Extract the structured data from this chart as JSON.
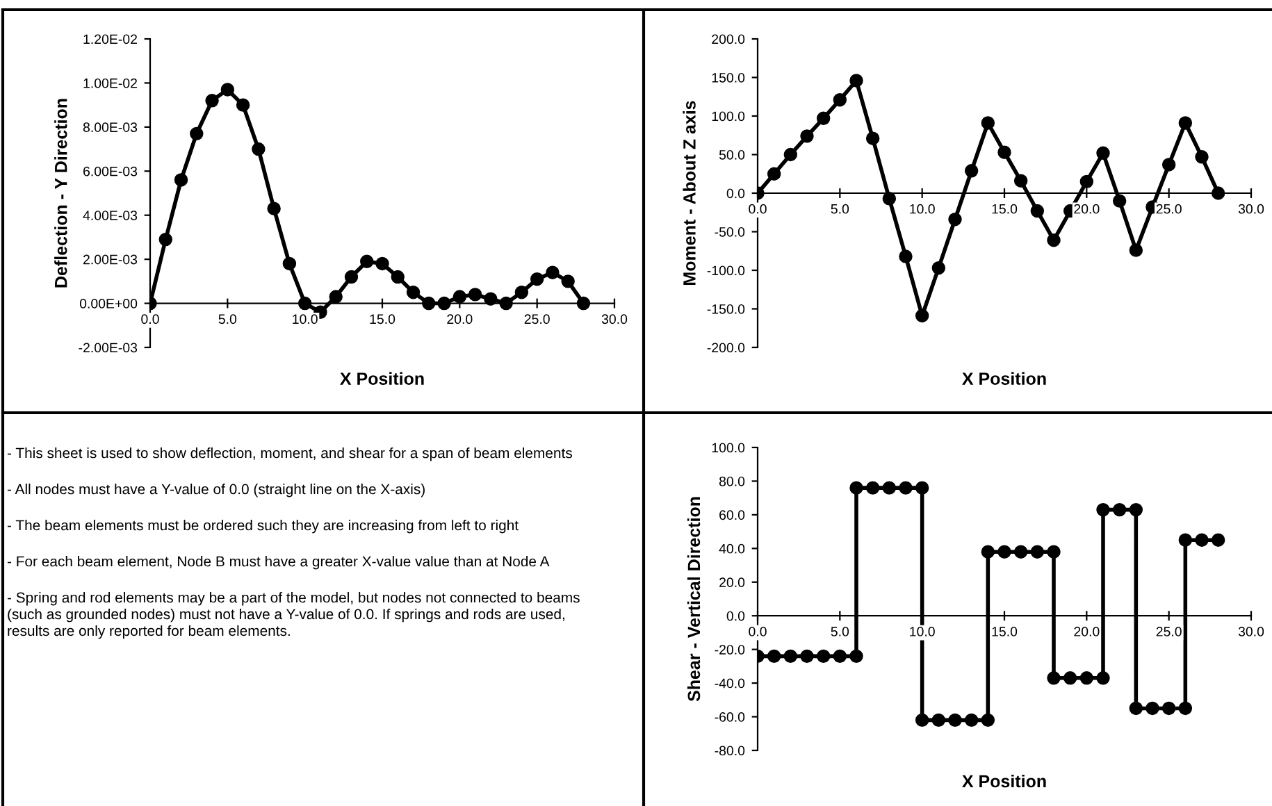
{
  "chart_data": [
    {
      "type": "line",
      "xlabel": "X Position",
      "ylabel": "Deflection - Y Direction",
      "marker": "circle",
      "line_style": "solid",
      "grid": false,
      "x": [
        0,
        1,
        2,
        3,
        4,
        5,
        6,
        7,
        8,
        9,
        10,
        11,
        12,
        13,
        14,
        15,
        16,
        17,
        18,
        19,
        20,
        21,
        22,
        23,
        24,
        25,
        26,
        27,
        28
      ],
      "series": [
        {
          "color": "#000000",
          "values": [
            0,
            0.0029,
            0.0056,
            0.0077,
            0.0092,
            0.0097,
            0.009,
            0.007,
            0.0043,
            0.0018,
            0,
            -0.0004,
            0.0003,
            0.0012,
            0.0019,
            0.0018,
            0.0012,
            0.0005,
            0,
            0,
            0.0003,
            0.0004,
            0.0002,
            0,
            0.0005,
            0.0011,
            0.0014,
            0.001,
            0
          ]
        }
      ],
      "xlim": [
        0,
        30
      ],
      "xticks": [
        {
          "value": 0,
          "label": "0.0"
        },
        {
          "value": 5,
          "label": "5.0"
        },
        {
          "value": 10,
          "label": "10.0"
        },
        {
          "value": 15,
          "label": "15.0"
        },
        {
          "value": 20,
          "label": "20.0"
        },
        {
          "value": 25,
          "label": "25.0"
        },
        {
          "value": 30,
          "label": "30.0"
        }
      ],
      "ylim": [
        -0.002,
        0.012
      ],
      "yticks": [
        {
          "value": -0.002,
          "label": "-2.00E-03"
        },
        {
          "value": 0,
          "label": "0.00E+00"
        },
        {
          "value": 0.002,
          "label": "2.00E-03"
        },
        {
          "value": 0.004,
          "label": "4.00E-03"
        },
        {
          "value": 0.006,
          "label": "6.00E-03"
        },
        {
          "value": 0.008,
          "label": "8.00E-03"
        },
        {
          "value": 0.01,
          "label": "1.00E-02"
        },
        {
          "value": 0.012,
          "label": "1.20E-02"
        }
      ]
    },
    {
      "type": "line",
      "xlabel": "X Position",
      "ylabel": "Moment - About Z axis",
      "marker": "circle",
      "line_style": "solid",
      "grid": false,
      "x": [
        0,
        1,
        2,
        3,
        4,
        5,
        6,
        7,
        8,
        9,
        10,
        11,
        12,
        13,
        14,
        15,
        16,
        17,
        18,
        19,
        20,
        21,
        22,
        23,
        24,
        25,
        26,
        27,
        28
      ],
      "series": [
        {
          "color": "#000000",
          "values": [
            0,
            25,
            50,
            74,
            97,
            121,
            146,
            71,
            -7,
            -82,
            -159,
            -97,
            -34,
            29,
            91,
            53,
            16,
            -23,
            -61,
            -23,
            15,
            52,
            -10,
            -74,
            -18,
            37,
            91,
            47,
            0
          ]
        }
      ],
      "xlim": [
        0,
        30
      ],
      "xticks": [
        {
          "value": 0,
          "label": "0.0"
        },
        {
          "value": 5,
          "label": "5.0"
        },
        {
          "value": 10,
          "label": "10.0"
        },
        {
          "value": 15,
          "label": "15.0"
        },
        {
          "value": 20,
          "label": "20.0"
        },
        {
          "value": 25,
          "label": "25.0"
        },
        {
          "value": 30,
          "label": "30.0"
        }
      ],
      "ylim": [
        -200,
        200
      ],
      "yticks": [
        {
          "value": -200,
          "label": "-200.0"
        },
        {
          "value": -150,
          "label": "-150.0"
        },
        {
          "value": -100,
          "label": "-100.0"
        },
        {
          "value": -50,
          "label": "-50.0"
        },
        {
          "value": 0,
          "label": "0.0"
        },
        {
          "value": 50,
          "label": "50.0"
        },
        {
          "value": 100,
          "label": "100.0"
        },
        {
          "value": 150,
          "label": "150.0"
        },
        {
          "value": 200,
          "label": "200.0"
        }
      ]
    },
    {
      "type": "other",
      "annotations": [
        "- This sheet is used to show deflection, moment, and shear for a span of beam elements",
        "- All nodes must have a Y-value of 0.0 (straight line on the X-axis)",
        "- The beam elements must be ordered such they are increasing from left to right",
        "- For each beam element, Node B must have a greater X-value value than at Node A",
        "- Spring and rod elements may be a part of the model, but nodes not connected to beams\n(such as grounded nodes) must not have a Y-value of 0.0. If springs and rods are used,\nresults are only reported for beam elements."
      ]
    },
    {
      "type": "line",
      "xlabel": "X Position",
      "ylabel": "Shear - Vertical Direction",
      "marker": "circle",
      "line_style": "solid",
      "grid": false,
      "x": [
        0,
        1,
        2,
        3,
        4,
        5,
        6,
        6,
        7,
        8,
        9,
        10,
        10,
        11,
        12,
        13,
        14,
        14,
        15,
        16,
        17,
        18,
        18,
        19,
        20,
        21,
        21,
        22,
        23,
        23,
        24,
        25,
        26,
        26,
        27,
        28
      ],
      "series": [
        {
          "color": "#000000",
          "values": [
            -24,
            -24,
            -24,
            -24,
            -24,
            -24,
            -24,
            76,
            76,
            76,
            76,
            76,
            -62,
            -62,
            -62,
            -62,
            -62,
            38,
            38,
            38,
            38,
            38,
            -37,
            -37,
            -37,
            -37,
            63,
            63,
            63,
            -55,
            -55,
            -55,
            -55,
            45,
            45,
            45
          ]
        }
      ],
      "xlim": [
        0,
        30
      ],
      "xticks": [
        {
          "value": 0,
          "label": "0.0"
        },
        {
          "value": 5,
          "label": "5.0"
        },
        {
          "value": 10,
          "label": "10.0"
        },
        {
          "value": 15,
          "label": "15.0"
        },
        {
          "value": 20,
          "label": "20.0"
        },
        {
          "value": 25,
          "label": "25.0"
        },
        {
          "value": 30,
          "label": "30.0"
        }
      ],
      "ylim": [
        -80,
        100
      ],
      "yticks": [
        {
          "value": -80,
          "label": "-80.0"
        },
        {
          "value": -60,
          "label": "-60.0"
        },
        {
          "value": -40,
          "label": "-40.0"
        },
        {
          "value": -20,
          "label": "-20.0"
        },
        {
          "value": 0,
          "label": "0.0"
        },
        {
          "value": 20,
          "label": "20.0"
        },
        {
          "value": 40,
          "label": "40.0"
        },
        {
          "value": 60,
          "label": "60.0"
        },
        {
          "value": 80,
          "label": "80.0"
        },
        {
          "value": 100,
          "label": "100.0"
        }
      ]
    }
  ]
}
